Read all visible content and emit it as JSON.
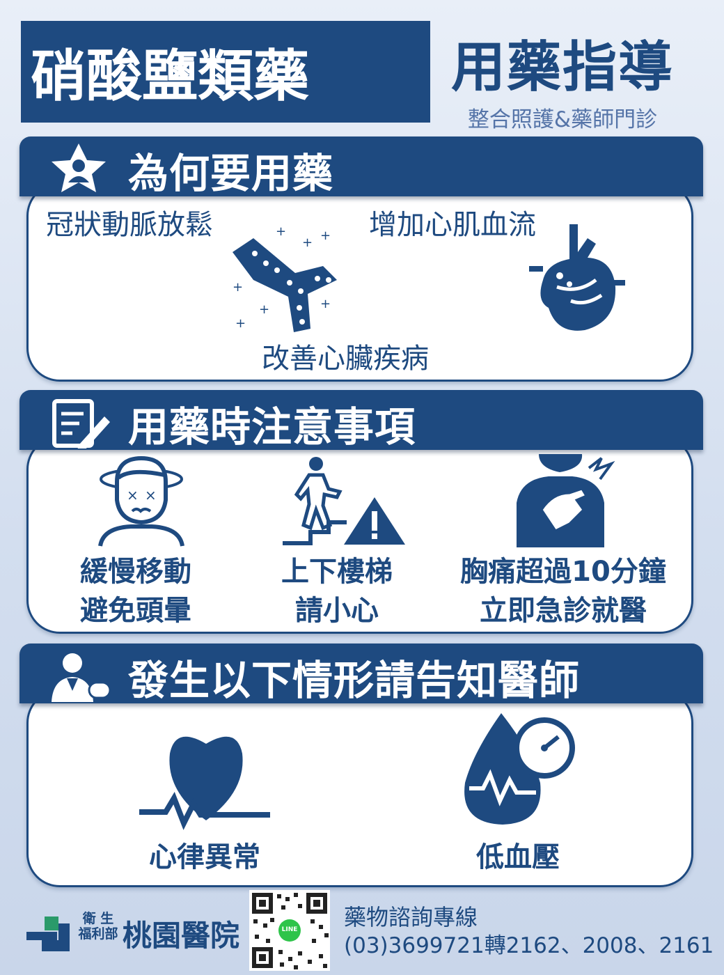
{
  "header": {
    "title": "硝酸鹽類藥",
    "subtitle": "用藥指導",
    "note": "整合照護&藥師門診"
  },
  "sections": [
    {
      "heading": "為何要用藥",
      "icon": "star-person-icon",
      "items": [
        "冠狀動脈放鬆",
        "增加心肌血流",
        "改善心臟疾病"
      ]
    },
    {
      "heading": "用藥時注意事項",
      "icon": "notepad-pencil-icon",
      "items": [
        {
          "line1": "緩慢移動",
          "line2": "避免頭暈",
          "icon": "dizzy-person-icon"
        },
        {
          "line1": "上下樓梯",
          "line2": "請小心",
          "icon": "stairs-warning-icon"
        },
        {
          "line1": "胸痛超過10分鐘",
          "line2": "立即急診就醫",
          "icon": "chest-pain-icon"
        }
      ]
    },
    {
      "heading": "發生以下情形請告知醫師",
      "icon": "doctor-icon",
      "items": [
        {
          "label": "心律異常",
          "icon": "heart-rhythm-icon"
        },
        {
          "label": "低血壓",
          "icon": "blood-pressure-drop-icon"
        }
      ]
    }
  ],
  "footer": {
    "dept": "衛 生\n福利部",
    "hospital": "桃園醫院",
    "qr_badge": "LINE",
    "hotline_title": "藥物諮詢專線",
    "hotline_phone": "(03)3699721轉2162、2008、2161"
  },
  "colors": {
    "navy": "#1e4a80",
    "white": "#ffffff",
    "line_green": "#2ec44a"
  }
}
